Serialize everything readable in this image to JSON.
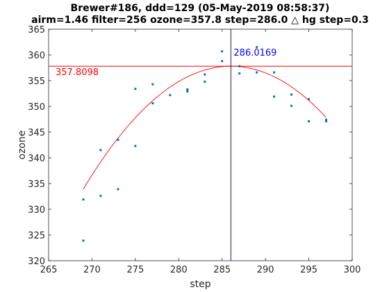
{
  "chart_data": {
    "type": "scatter",
    "title_line1": "Brewer#186, ddd=129 (05-May-2019 08:58:37)",
    "title_line2": "airm=1.46  filter=256 ozone=357.8  step=286.0 △ hg step=0.3",
    "xlabel": "step",
    "ylabel": "ozone",
    "xlim": [
      265,
      300
    ],
    "ylim": [
      320,
      365
    ],
    "xticks": [
      265,
      270,
      275,
      280,
      285,
      290,
      295,
      300
    ],
    "yticks": [
      320,
      325,
      330,
      335,
      340,
      345,
      350,
      355,
      360,
      365
    ],
    "points": [
      [
        269,
        331.9
      ],
      [
        269,
        323.9
      ],
      [
        271,
        341.5
      ],
      [
        271,
        332.6
      ],
      [
        273,
        343.5
      ],
      [
        273,
        333.9
      ],
      [
        275,
        353.4
      ],
      [
        275,
        342.3
      ],
      [
        277,
        354.3
      ],
      [
        277,
        350.6
      ],
      [
        279,
        352.2
      ],
      [
        281,
        353.3
      ],
      [
        281,
        352.9
      ],
      [
        283,
        356.2
      ],
      [
        283,
        354.8
      ],
      [
        285,
        360.7
      ],
      [
        285,
        358.8
      ],
      [
        287,
        357.8
      ],
      [
        287,
        356.4
      ],
      [
        289,
        361.5
      ],
      [
        289,
        356.6
      ],
      [
        291,
        356.6
      ],
      [
        291,
        351.9
      ],
      [
        293,
        352.3
      ],
      [
        293,
        350.1
      ],
      [
        295,
        351.4
      ],
      [
        295,
        347.1
      ],
      [
        297,
        347.4
      ],
      [
        297,
        347.1
      ]
    ],
    "fit": {
      "type": "quadratic",
      "vertex_x": 286.0169,
      "vertex_y": 357.8098,
      "curvature": -0.0825,
      "x_range": [
        269,
        297
      ]
    },
    "hline_value": 357.8098,
    "vline_value": 286.0169,
    "hline_label": "357.8098",
    "vline_label": "286.0169",
    "colors": {
      "points": "#0072BD",
      "fit": "#FF0000",
      "hline": "#FF0000",
      "vline": "#1A1A66",
      "hline_label": "#FF0000",
      "vline_label": "#0000FF",
      "axes": "#262626"
    },
    "grid": false
  }
}
